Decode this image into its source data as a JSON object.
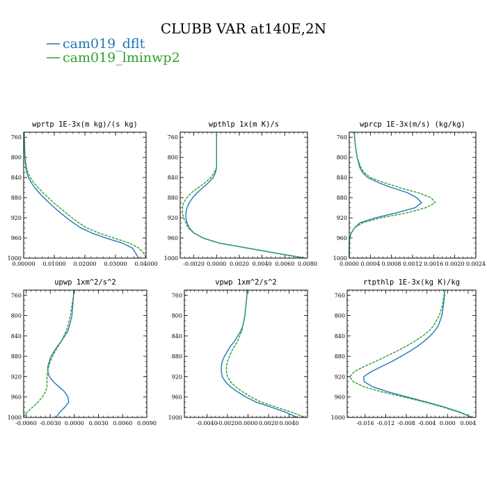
{
  "figure": {
    "title": "CLUBB VAR at140E,2N",
    "legend": [
      {
        "label": "cam019_dflt",
        "color": "#1f77b4",
        "dash": "solid"
      },
      {
        "label": "cam019_lminwp2",
        "color": "#2ca02c",
        "dash": "dashed"
      }
    ]
  },
  "chart_data": [
    {
      "type": "line",
      "title": "wprtp  1E-3x(m kg)/(s kg)",
      "xlim": [
        0,
        0.04
      ],
      "xticks": [
        "0.00000",
        "0.01000",
        "0.02000",
        "0.03000",
        "0.04000"
      ],
      "ylim": [
        1000,
        750
      ],
      "yticks": [
        760,
        800,
        840,
        880,
        920,
        960,
        1000
      ],
      "levels": [
        750,
        760,
        780,
        800,
        820,
        830,
        840,
        850,
        860,
        870,
        880,
        890,
        900,
        910,
        920,
        930,
        940,
        950,
        960,
        970,
        980,
        990,
        1000
      ],
      "series": [
        {
          "name": "cam019_dflt",
          "color": "#1f77b4",
          "values": [
            0.0002,
            0.0002,
            0.0003,
            0.0004,
            0.0007,
            0.001,
            0.0016,
            0.0025,
            0.0036,
            0.005,
            0.0066,
            0.0083,
            0.0101,
            0.012,
            0.014,
            0.0162,
            0.0187,
            0.0222,
            0.0268,
            0.0322,
            0.0355,
            0.0366,
            0.0375
          ]
        },
        {
          "name": "cam019_lminwp2",
          "color": "#2ca02c",
          "values": [
            0.0002,
            0.0002,
            0.0003,
            0.0005,
            0.0009,
            0.0014,
            0.0022,
            0.0033,
            0.0047,
            0.0063,
            0.008,
            0.0098,
            0.0118,
            0.0138,
            0.0158,
            0.018,
            0.0206,
            0.0245,
            0.0294,
            0.0346,
            0.0376,
            0.0392,
            0.04
          ]
        }
      ]
    },
    {
      "type": "line",
      "title": "wpthlp  1x(m K)/s",
      "xlim": [
        -0.0032,
        0.008
      ],
      "xticks": [
        "-0.0020",
        "0.0000",
        "0.0020",
        "0.0040",
        "0.0060",
        "0.0080"
      ],
      "ylim": [
        1000,
        750
      ],
      "yticks": [
        760,
        800,
        840,
        880,
        920,
        960,
        1000
      ],
      "levels": [
        750,
        760,
        780,
        800,
        820,
        830,
        840,
        850,
        860,
        870,
        880,
        890,
        900,
        910,
        920,
        930,
        940,
        950,
        960,
        970,
        980,
        990,
        1000
      ],
      "series": [
        {
          "name": "cam019_dflt",
          "color": "#1f77b4",
          "values": [
            0.0,
            0.0,
            0.0,
            0.0,
            0.0,
            -0.0001,
            -0.0003,
            -0.0007,
            -0.0012,
            -0.0017,
            -0.0021,
            -0.0024,
            -0.0026,
            -0.0027,
            -0.0027,
            -0.0026,
            -0.0024,
            -0.002,
            -0.0012,
            0.0002,
            0.0027,
            0.0052,
            0.0078
          ]
        },
        {
          "name": "cam019_lminwp2",
          "color": "#2ca02c",
          "values": [
            0.0,
            0.0,
            0.0,
            0.0,
            0.0,
            -0.0002,
            -0.0005,
            -0.001,
            -0.0016,
            -0.0022,
            -0.0026,
            -0.0029,
            -0.003,
            -0.003,
            -0.0029,
            -0.0027,
            -0.0025,
            -0.002,
            -0.0012,
            0.0002,
            0.0027,
            0.0052,
            0.0078
          ]
        }
      ]
    },
    {
      "type": "line",
      "title": "wprcp  1E-3x(m/s) (kg/kg)",
      "xlim": [
        0,
        0.0024
      ],
      "xticks": [
        "0.0000",
        "0.0004",
        "0.0008",
        "0.0012",
        "0.0016",
        "0.0020",
        "0.0024"
      ],
      "ylim": [
        1000,
        750
      ],
      "yticks": [
        760,
        800,
        840,
        880,
        920,
        960,
        1000
      ],
      "levels": [
        750,
        760,
        780,
        800,
        820,
        830,
        840,
        850,
        860,
        870,
        880,
        890,
        900,
        910,
        920,
        930,
        940,
        950,
        960,
        970,
        980,
        990,
        1000
      ],
      "series": [
        {
          "name": "cam019_dflt",
          "color": "#1f77b4",
          "values": [
            0.0001,
            0.0001,
            0.00012,
            0.00015,
            0.0002,
            0.00025,
            0.00035,
            0.00055,
            0.0008,
            0.0011,
            0.00128,
            0.00137,
            0.00125,
            0.0009,
            0.0005,
            0.0002,
            0.0001,
            4e-05,
            1e-05,
            0.0,
            0.0,
            0.0,
            0.0
          ]
        },
        {
          "name": "cam019_lminwp2",
          "color": "#2ca02c",
          "values": [
            0.0001,
            0.0001,
            0.00012,
            0.00015,
            0.00022,
            0.00028,
            0.0004,
            0.00065,
            0.00095,
            0.0013,
            0.00155,
            0.00163,
            0.00145,
            0.0011,
            0.0006,
            0.00025,
            0.0001,
            4e-05,
            1e-05,
            0.0,
            0.0,
            0.0,
            0.0
          ]
        }
      ]
    },
    {
      "type": "line",
      "title": "upwp  1xm^2/s^2",
      "xlim": [
        -0.0063,
        0.009
      ],
      "xticks": [
        "-0.0060",
        "-0.0030",
        "0.0000",
        "0.0030",
        "0.0060",
        "0.0090"
      ],
      "ylim": [
        1000,
        750
      ],
      "yticks": [
        760,
        800,
        840,
        880,
        920,
        960,
        1000
      ],
      "levels": [
        750,
        760,
        780,
        800,
        820,
        830,
        840,
        850,
        860,
        870,
        880,
        890,
        900,
        910,
        920,
        930,
        940,
        950,
        960,
        970,
        980,
        990,
        1000
      ],
      "series": [
        {
          "name": "cam019_dflt",
          "color": "#1f77b4",
          "values": [
            -0.0001,
            -0.0001,
            -0.0002,
            -0.0003,
            -0.0006,
            -0.0008,
            -0.0012,
            -0.0016,
            -0.0021,
            -0.0025,
            -0.0029,
            -0.0031,
            -0.0033,
            -0.0033,
            -0.0031,
            -0.0026,
            -0.0019,
            -0.0012,
            -0.0008,
            -0.0007,
            -0.0012,
            -0.0018,
            -0.0023
          ]
        },
        {
          "name": "cam019_lminwp2",
          "color": "#2ca02c",
          "values": [
            -0.0001,
            -0.0001,
            -0.0003,
            -0.0005,
            -0.0008,
            -0.001,
            -0.0013,
            -0.0016,
            -0.002,
            -0.0024,
            -0.0027,
            -0.003,
            -0.0032,
            -0.0033,
            -0.0034,
            -0.0034,
            -0.0034,
            -0.0036,
            -0.004,
            -0.0045,
            -0.0052,
            -0.0059,
            -0.0064
          ]
        }
      ]
    },
    {
      "type": "line",
      "title": "vpwp  1xm^2/s^2",
      "xlim": [
        -0.0062,
        0.0058
      ],
      "xticks": [
        "-0.0040",
        "-0.0020",
        "0.0000",
        "0.0020",
        "0.0040"
      ],
      "ylim": [
        1000,
        750
      ],
      "yticks": [
        760,
        800,
        840,
        880,
        920,
        960,
        1000
      ],
      "levels": [
        750,
        760,
        780,
        800,
        820,
        830,
        840,
        850,
        860,
        870,
        880,
        890,
        900,
        910,
        920,
        930,
        940,
        950,
        960,
        970,
        980,
        990,
        1000
      ],
      "series": [
        {
          "name": "cam019_dflt",
          "color": "#1f77b4",
          "values": [
            -0.0001,
            -0.0001,
            -0.0002,
            -0.0003,
            -0.0005,
            -0.0007,
            -0.001,
            -0.0013,
            -0.0017,
            -0.002,
            -0.0023,
            -0.0025,
            -0.0026,
            -0.0026,
            -0.0025,
            -0.0022,
            -0.0017,
            -0.001,
            -0.0002,
            0.0008,
            0.0023,
            0.0037,
            0.0048
          ]
        },
        {
          "name": "cam019_lminwp2",
          "color": "#2ca02c",
          "values": [
            -0.0001,
            -0.0001,
            -0.0002,
            -0.0003,
            -0.0005,
            -0.0006,
            -0.0008,
            -0.001,
            -0.0013,
            -0.0016,
            -0.0018,
            -0.002,
            -0.0021,
            -0.0021,
            -0.002,
            -0.0017,
            -0.0012,
            -0.0005,
            0.0003,
            0.0013,
            0.0028,
            0.0043,
            0.0056
          ]
        }
      ]
    },
    {
      "type": "line",
      "title": "rtpthlp  1E-3x(kg K)/kg",
      "xlim": [
        -0.0195,
        0.0055
      ],
      "xticks": [
        "-0.016",
        "-0.012",
        "-0.008",
        "-0.004",
        "0.000",
        "0.004"
      ],
      "ylim": [
        1000,
        750
      ],
      "yticks": [
        760,
        800,
        840,
        880,
        920,
        960,
        1000
      ],
      "levels": [
        750,
        760,
        780,
        800,
        820,
        830,
        840,
        850,
        860,
        870,
        880,
        890,
        900,
        910,
        920,
        930,
        940,
        950,
        960,
        970,
        980,
        990,
        1000
      ],
      "series": [
        {
          "name": "cam019_dflt",
          "color": "#1f77b4",
          "values": [
            -0.0005,
            -0.0006,
            -0.0008,
            -0.0011,
            -0.0018,
            -0.0025,
            -0.0034,
            -0.0045,
            -0.0058,
            -0.0073,
            -0.009,
            -0.0108,
            -0.0128,
            -0.0148,
            -0.0163,
            -0.0162,
            -0.0145,
            -0.0115,
            -0.0078,
            -0.004,
            -0.0005,
            0.0025,
            0.0048
          ]
        },
        {
          "name": "cam019_lminwp2",
          "color": "#2ca02c",
          "values": [
            -0.0005,
            -0.0007,
            -0.001,
            -0.0016,
            -0.0027,
            -0.0036,
            -0.0048,
            -0.0063,
            -0.008,
            -0.0099,
            -0.0119,
            -0.014,
            -0.0162,
            -0.0181,
            -0.019,
            -0.0183,
            -0.0162,
            -0.0127,
            -0.0085,
            -0.0044,
            -0.0008,
            0.0023,
            0.0048
          ]
        }
      ]
    }
  ]
}
